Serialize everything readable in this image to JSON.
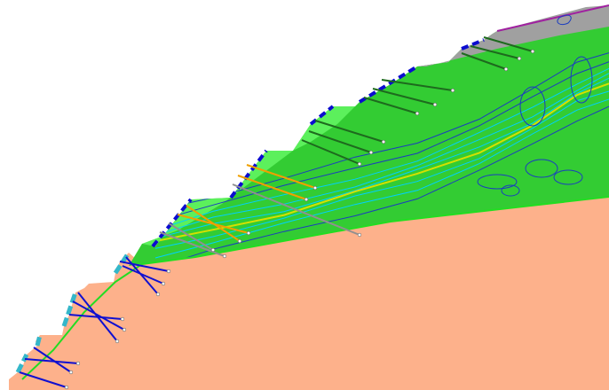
{
  "colors": {
    "background": "#ffffff",
    "bedrock": "#fdb18b",
    "slope_layer": "#33cc33",
    "slope_layer_light": "#5cf05c",
    "crest_cap": "#a0a0a0",
    "crest_line": "#a020a0",
    "facing_support": "#0b0bd0",
    "facing_cyan": "#34b7c9",
    "anchor_lower": "#1010d0",
    "anchor_middle_orange": "#f0a000",
    "anchor_middle_gray": "#909090",
    "anchor_upper": "#1e6a1e",
    "interface_line": "#22dd22",
    "contour_inner": "#00d0ff",
    "contour_outer": "#1a3cc0",
    "contour_hot": "#d4e000"
  }
}
